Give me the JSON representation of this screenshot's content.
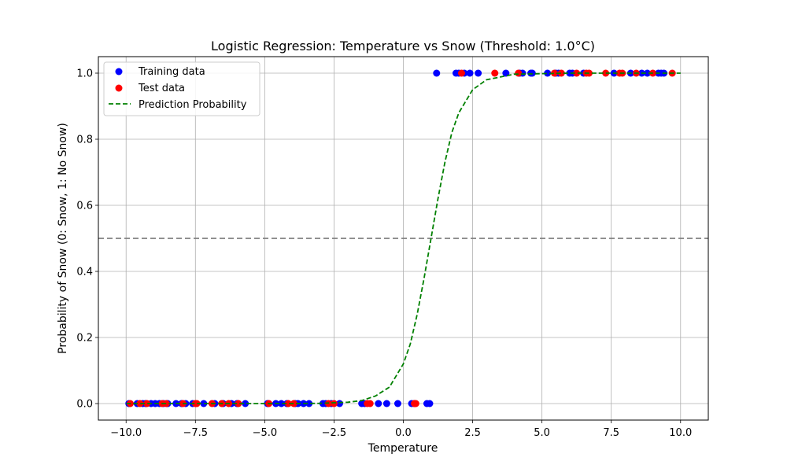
{
  "chart_data": {
    "type": "scatter",
    "title": "Logistic Regression: Temperature vs Snow (Threshold: 1.0°C)",
    "xlabel": "Temperature",
    "ylabel": "Probability of Snow (0: Snow, 1: No Snow)",
    "xlim": [
      -11,
      11
    ],
    "ylim": [
      -0.05,
      1.05
    ],
    "xticks": [
      -10.0,
      -7.5,
      -5.0,
      -2.5,
      0.0,
      2.5,
      5.0,
      7.5,
      10.0
    ],
    "xtick_labels": [
      "−10.0",
      "−7.5",
      "−5.0",
      "−2.5",
      "0.0",
      "2.5",
      "5.0",
      "7.5",
      "10.0"
    ],
    "yticks": [
      0.0,
      0.2,
      0.4,
      0.6,
      0.8,
      1.0
    ],
    "ytick_labels": [
      "0.0",
      "0.2",
      "0.4",
      "0.6",
      "0.8",
      "1.0"
    ],
    "grid": true,
    "legend_position": "top-left",
    "threshold_line": {
      "y": 0.5,
      "color": "#808080"
    },
    "series": [
      {
        "name": "Training data",
        "kind": "scatter",
        "color": "#0000ff",
        "x": [
          -9.9,
          -9.6,
          -9.4,
          -9.3,
          -9.1,
          -8.95,
          -8.8,
          -8.65,
          -8.5,
          -8.2,
          -8.0,
          -7.85,
          -7.6,
          -7.2,
          -6.8,
          -6.5,
          -6.2,
          -6.0,
          -5.7,
          -4.9,
          -4.6,
          -4.4,
          -4.2,
          -3.9,
          -3.8,
          -3.6,
          -3.4,
          -2.9,
          -2.8,
          -2.6,
          -2.3,
          -1.5,
          -1.4,
          -0.9,
          -0.6,
          -0.2,
          0.3,
          0.4,
          0.85,
          0.95,
          1.2,
          1.9,
          2.0,
          2.2,
          2.4,
          2.7,
          3.7,
          4.2,
          4.3,
          4.6,
          4.65,
          5.2,
          5.5,
          5.6,
          6.0,
          6.1,
          6.5,
          7.6,
          8.2,
          8.6,
          8.8,
          9.2,
          9.3,
          9.4
        ],
        "y": [
          0,
          0,
          0,
          0,
          0,
          0,
          0,
          0,
          0,
          0,
          0,
          0,
          0,
          0,
          0,
          0,
          0,
          0,
          0,
          0,
          0,
          0,
          0,
          0,
          0,
          0,
          0,
          0,
          0,
          0,
          0,
          0,
          0,
          0,
          0,
          0,
          0,
          0,
          0,
          0,
          1,
          1,
          1,
          1,
          1,
          1,
          1,
          1,
          1,
          1,
          1,
          1,
          1,
          1,
          1,
          1,
          1,
          1,
          1,
          1,
          1,
          1,
          1,
          1
        ]
      },
      {
        "name": "Test data",
        "kind": "scatter",
        "color": "#ff0000",
        "x": [
          -9.85,
          -9.5,
          -9.25,
          -8.7,
          -8.55,
          -7.95,
          -7.5,
          -7.45,
          -6.9,
          -6.55,
          -6.3,
          -5.95,
          -4.85,
          -4.15,
          -3.95,
          -2.7,
          -2.5,
          -1.3,
          -1.2,
          0.4,
          0.45,
          2.1,
          3.3,
          4.15,
          5.45,
          5.7,
          6.25,
          6.6,
          6.7,
          7.3,
          7.8,
          7.9,
          8.4,
          9.0,
          9.7
        ],
        "y": [
          0,
          0,
          0,
          0,
          0,
          0,
          0,
          0,
          0,
          0,
          0,
          0,
          0,
          0,
          0,
          0,
          0,
          0,
          0,
          0,
          0,
          1,
          1,
          1,
          1,
          1,
          1,
          1,
          1,
          1,
          1,
          1,
          1,
          1,
          1
        ]
      },
      {
        "name": "Prediction Probability",
        "kind": "line",
        "color": "#008000",
        "dash": "dashed",
        "x": [
          -10.0,
          -8.0,
          -6.0,
          -4.0,
          -3.0,
          -2.0,
          -1.5,
          -1.0,
          -0.5,
          0.0,
          0.25,
          0.5,
          0.75,
          1.0,
          1.25,
          1.5,
          1.75,
          2.0,
          2.5,
          3.0,
          4.0,
          6.0,
          8.0,
          10.0
        ],
        "y": [
          0.0,
          0.0,
          0.0,
          0.0001,
          0.0006,
          0.004,
          0.009,
          0.023,
          0.05,
          0.12,
          0.18,
          0.27,
          0.38,
          0.5,
          0.62,
          0.73,
          0.82,
          0.88,
          0.95,
          0.98,
          0.997,
          1.0,
          1.0,
          1.0
        ]
      }
    ]
  }
}
